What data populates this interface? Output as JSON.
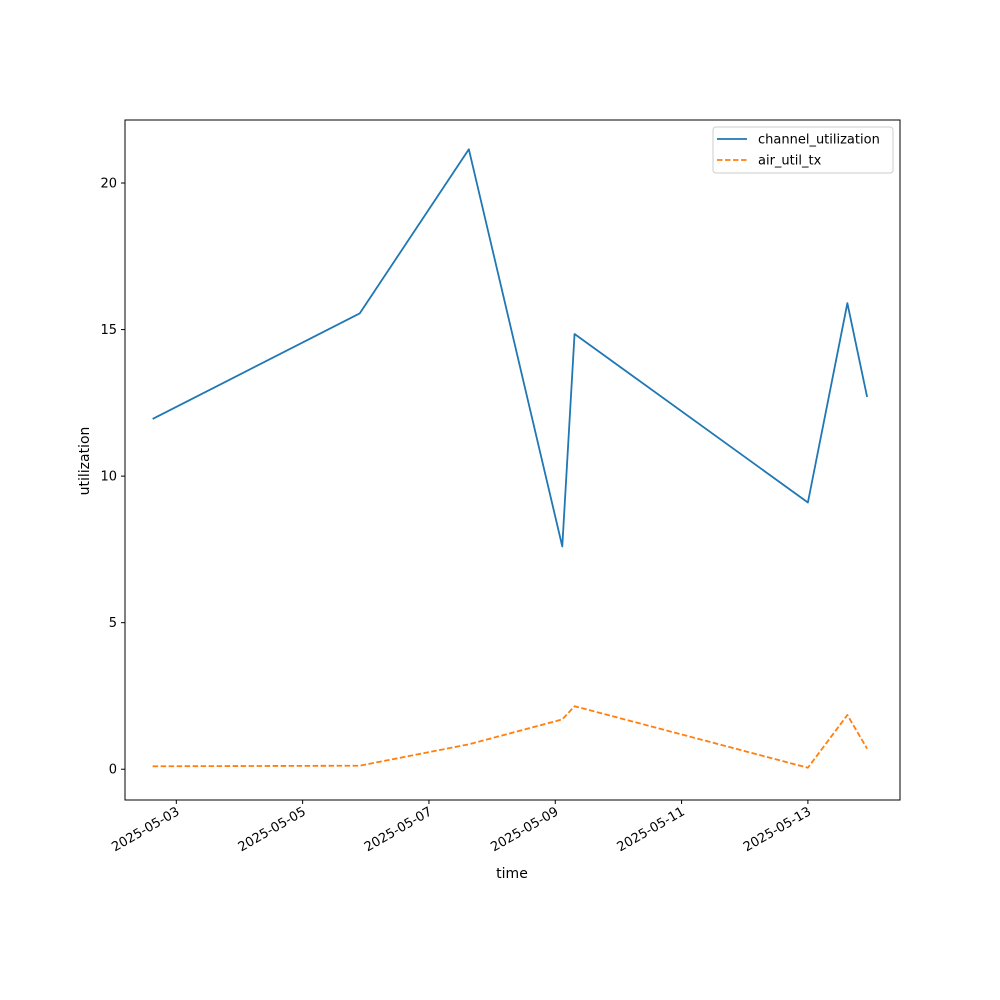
{
  "chart_data": {
    "type": "line",
    "title": "",
    "xlabel": "time",
    "ylabel": "utilization",
    "x_type": "datetime",
    "xlim": [
      "2025-05-02T04:30",
      "2025-05-14T11:00"
    ],
    "ylim": [
      -1.05,
      22.15
    ],
    "grid": false,
    "legend_position": "upper right",
    "x_ticks": [
      {
        "value": "2025-05-03",
        "label": "2025-05-03"
      },
      {
        "value": "2025-05-05",
        "label": "2025-05-05"
      },
      {
        "value": "2025-05-07",
        "label": "2025-05-07"
      },
      {
        "value": "2025-05-09",
        "label": "2025-05-09"
      },
      {
        "value": "2025-05-11",
        "label": "2025-05-11"
      },
      {
        "value": "2025-05-13",
        "label": "2025-05-13"
      }
    ],
    "y_ticks": [
      {
        "value": 0,
        "label": "0"
      },
      {
        "value": 5,
        "label": "5"
      },
      {
        "value": 10,
        "label": "10"
      },
      {
        "value": 15,
        "label": "15"
      },
      {
        "value": 20,
        "label": "20"
      }
    ],
    "x": [
      "2025-05-02T15:00",
      "2025-05-05T21:40",
      "2025-05-07T15:10",
      "2025-05-09T02:40",
      "2025-05-09T07:20",
      "2025-05-13T00:00",
      "2025-05-13T15:00",
      "2025-05-13T22:30"
    ],
    "series": [
      {
        "name": "channel_utilization",
        "color": "#1f77b4",
        "dash": "solid",
        "values": [
          11.95,
          15.55,
          21.15,
          7.6,
          14.85,
          9.1,
          15.9,
          12.7
        ]
      },
      {
        "name": "air_util_tx",
        "color": "#ff7f0e",
        "dash": "dashed",
        "values": [
          0.1,
          0.12,
          0.85,
          1.7,
          2.15,
          0.05,
          1.85,
          0.7
        ]
      }
    ]
  }
}
